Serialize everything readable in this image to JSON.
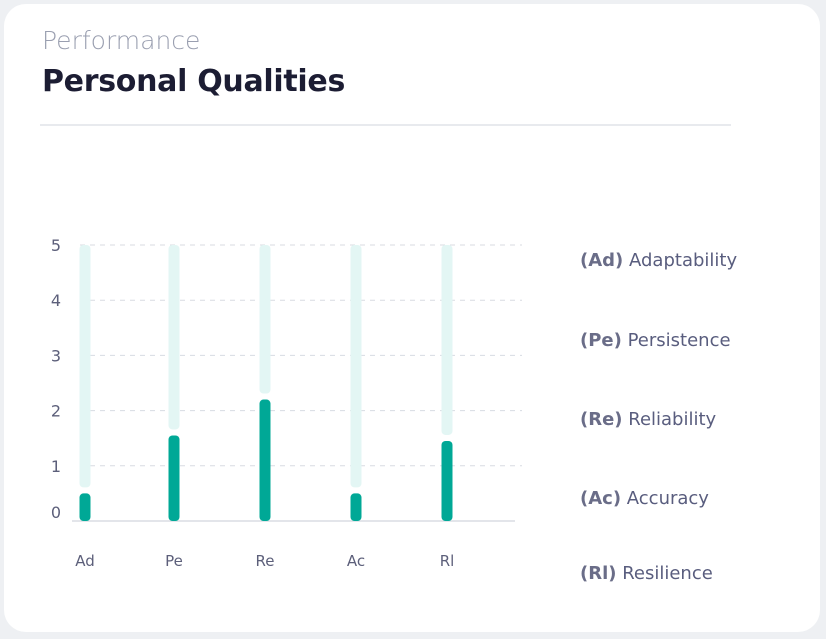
{
  "header": {
    "subtitle": "Performance",
    "title": "Personal Qualities"
  },
  "colors": {
    "bar": "#00a896",
    "track": "#e3f6f4",
    "grid": "#d8dbe2",
    "axis": "#e3e5ea"
  },
  "chart_data": {
    "type": "bar",
    "categories": [
      "Ad",
      "Pe",
      "Re",
      "Ac",
      "Rl"
    ],
    "values": [
      0.5,
      1.55,
      2.2,
      0.5,
      1.45
    ],
    "ylim": [
      0,
      5
    ],
    "yticks": [
      0,
      1,
      2,
      3,
      4,
      5
    ],
    "grid": true,
    "legend_position": "right"
  },
  "legend": [
    {
      "abbr": "(Ad)",
      "label": "Adaptability"
    },
    {
      "abbr": "(Pe)",
      "label": "Persistence"
    },
    {
      "abbr": "(Re)",
      "label": "Reliability"
    },
    {
      "abbr": "(Ac)",
      "label": "Accuracy"
    },
    {
      "abbr": "(Rl)",
      "label": "Resilience"
    }
  ]
}
